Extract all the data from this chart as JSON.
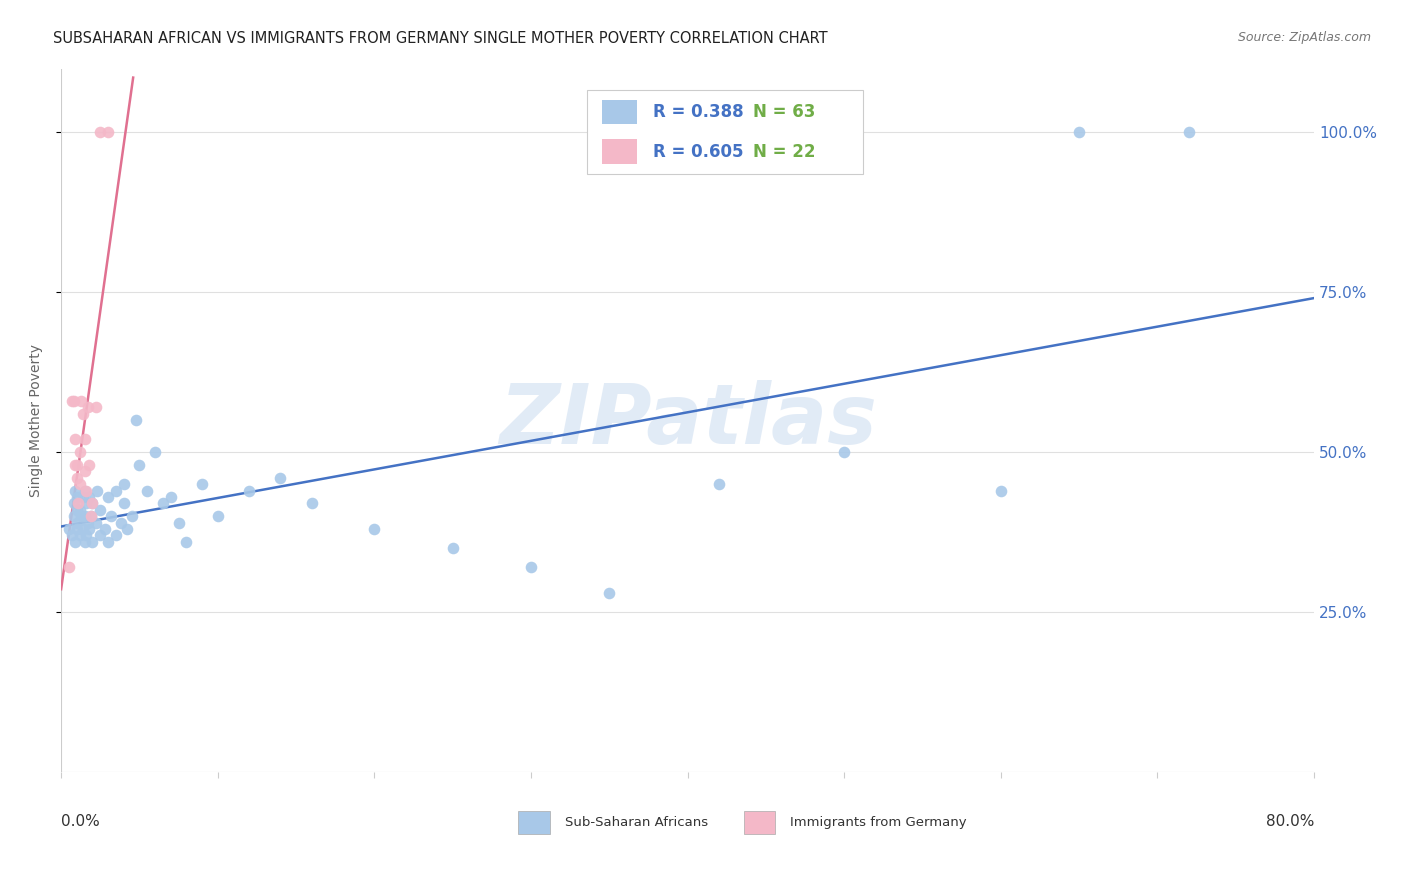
{
  "title": "SUBSAHARAN AFRICAN VS IMMIGRANTS FROM GERMANY SINGLE MOTHER POVERTY CORRELATION CHART",
  "source": "Source: ZipAtlas.com",
  "ylabel": "Single Mother Poverty",
  "background_color": "#ffffff",
  "watermark_text": "ZIPatlas",
  "blue_R": 0.388,
  "blue_N": 63,
  "pink_R": 0.605,
  "pink_N": 22,
  "blue_scatter_color": "#a8c8e8",
  "pink_scatter_color": "#f4b8c8",
  "blue_line_color": "#4472c4",
  "pink_line_color": "#e07090",
  "rn_R_color": "#4472c4",
  "rn_N_color": "#70ad47",
  "legend_edge_color": "#cccccc",
  "grid_color": "#e0e0e0",
  "axis_color": "#cccccc",
  "ylabel_color": "#666666",
  "right_tick_color": "#4472c4",
  "xlabel_color": "#333333",
  "blue_points_x": [
    0.005,
    0.007,
    0.008,
    0.008,
    0.009,
    0.009,
    0.01,
    0.01,
    0.01,
    0.01,
    0.012,
    0.012,
    0.013,
    0.014,
    0.014,
    0.015,
    0.015,
    0.015,
    0.016,
    0.016,
    0.017,
    0.018,
    0.018,
    0.019,
    0.02,
    0.02,
    0.022,
    0.023,
    0.025,
    0.025,
    0.028,
    0.03,
    0.03,
    0.032,
    0.035,
    0.035,
    0.038,
    0.04,
    0.04,
    0.042,
    0.045,
    0.048,
    0.05,
    0.055,
    0.06,
    0.065,
    0.07,
    0.075,
    0.08,
    0.09,
    0.1,
    0.12,
    0.14,
    0.16,
    0.2,
    0.25,
    0.3,
    0.35,
    0.42,
    0.5,
    0.6,
    0.65,
    0.72
  ],
  "blue_points_y": [
    0.38,
    0.37,
    0.4,
    0.42,
    0.36,
    0.44,
    0.39,
    0.41,
    0.43,
    0.38,
    0.37,
    0.41,
    0.4,
    0.38,
    0.43,
    0.36,
    0.4,
    0.44,
    0.37,
    0.42,
    0.39,
    0.38,
    0.43,
    0.4,
    0.36,
    0.42,
    0.39,
    0.44,
    0.37,
    0.41,
    0.38,
    0.36,
    0.43,
    0.4,
    0.37,
    0.44,
    0.39,
    0.42,
    0.45,
    0.38,
    0.4,
    0.55,
    0.48,
    0.44,
    0.5,
    0.42,
    0.43,
    0.39,
    0.36,
    0.45,
    0.4,
    0.44,
    0.46,
    0.42,
    0.38,
    0.35,
    0.32,
    0.28,
    0.45,
    0.5,
    0.44,
    1.0,
    1.0
  ],
  "pink_points_x": [
    0.005,
    0.007,
    0.008,
    0.009,
    0.009,
    0.01,
    0.01,
    0.011,
    0.012,
    0.012,
    0.013,
    0.014,
    0.015,
    0.015,
    0.016,
    0.017,
    0.018,
    0.019,
    0.02,
    0.022,
    0.025,
    0.03
  ],
  "pink_points_y": [
    0.32,
    0.58,
    0.58,
    0.48,
    0.52,
    0.46,
    0.48,
    0.42,
    0.45,
    0.5,
    0.58,
    0.56,
    0.47,
    0.52,
    0.44,
    0.57,
    0.48,
    0.4,
    0.42,
    0.57,
    1.0,
    1.0
  ],
  "ytick_values": [
    0.25,
    0.5,
    0.75,
    1.0
  ],
  "ytick_labels": [
    "25.0%",
    "50.0%",
    "75.0%",
    "100.0%"
  ],
  "xlim": [
    0.0,
    0.8
  ],
  "ylim": [
    0.0,
    1.1
  ],
  "blue_line_x_start": 0.0,
  "blue_line_x_end": 0.8,
  "pink_line_x_start": 0.0,
  "pink_line_x_end": 0.046,
  "title_fontsize": 10.5,
  "source_fontsize": 9,
  "ylabel_fontsize": 10,
  "tick_label_fontsize": 11,
  "legend_fontsize": 12,
  "watermark_fontsize": 60,
  "scatter_size": 70,
  "bottom_legend_label1": "Sub-Saharan Africans",
  "bottom_legend_label2": "Immigrants from Germany"
}
